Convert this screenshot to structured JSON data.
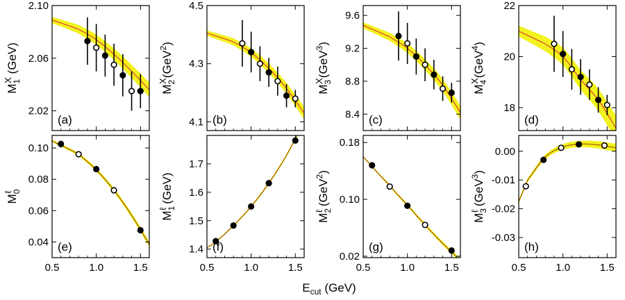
{
  "figure": {
    "xlabel": {
      "main": "E",
      "sub": "cut",
      "unit": " (GeV)"
    }
  },
  "chart_data": [
    {
      "type": "scatter",
      "panel": "(a)",
      "row": "top",
      "col": 0,
      "ylabel": {
        "base": "M",
        "sub": "1",
        "sup": "X",
        "unit": " (GeV)",
        "unit_sup": ""
      },
      "xlim": [
        0.5,
        1.6
      ],
      "ylim": [
        2.005,
        2.1
      ],
      "xticks": [
        "0.5",
        "1.0",
        "1.5"
      ],
      "yticks": [
        "2.02",
        "2.06",
        "2.10"
      ],
      "xticklabels_shown": false,
      "fit_curve": {
        "x": [
          0.5,
          0.8,
          1.0,
          1.2,
          1.4,
          1.6
        ],
        "y": [
          2.089,
          2.082,
          2.074,
          2.063,
          2.05,
          2.036
        ]
      },
      "band_halfwidth": 0.004,
      "points": [
        {
          "x": 0.9,
          "y": 2.073,
          "err": 0.018,
          "filled": true
        },
        {
          "x": 1.0,
          "y": 2.068,
          "err": 0.018,
          "filled": false
        },
        {
          "x": 1.1,
          "y": 2.062,
          "err": 0.016,
          "filled": true
        },
        {
          "x": 1.2,
          "y": 2.055,
          "err": 0.016,
          "filled": false
        },
        {
          "x": 1.3,
          "y": 2.047,
          "err": 0.016,
          "filled": true
        },
        {
          "x": 1.4,
          "y": 2.035,
          "err": 0.015,
          "filled": false
        },
        {
          "x": 1.5,
          "y": 2.035,
          "err": 0.013,
          "filled": true
        }
      ]
    },
    {
      "type": "scatter",
      "panel": "(b)",
      "row": "top",
      "col": 1,
      "ylabel": {
        "base": "M",
        "sub": "2",
        "sup": "X",
        "unit": "(GeV",
        "unit_sup": "2"
      },
      "xlim": [
        0.5,
        1.6
      ],
      "ylim": [
        4.07,
        4.5
      ],
      "xticks": [
        "0.5",
        "1.0",
        "1.5"
      ],
      "yticks": [
        "4.1",
        "4.3",
        "4.5"
      ],
      "xticklabels_shown": false,
      "fit_curve": {
        "x": [
          0.5,
          0.8,
          1.0,
          1.2,
          1.4,
          1.6
        ],
        "y": [
          4.405,
          4.375,
          4.338,
          4.284,
          4.215,
          4.13
        ]
      },
      "band_halfwidth": 0.015,
      "points": [
        {
          "x": 0.9,
          "y": 4.37,
          "err": 0.08,
          "filled": false
        },
        {
          "x": 1.0,
          "y": 4.34,
          "err": 0.07,
          "filled": true
        },
        {
          "x": 1.1,
          "y": 4.3,
          "err": 0.06,
          "filled": false
        },
        {
          "x": 1.2,
          "y": 4.27,
          "err": 0.05,
          "filled": true
        },
        {
          "x": 1.3,
          "y": 4.24,
          "err": 0.05,
          "filled": false
        },
        {
          "x": 1.4,
          "y": 4.19,
          "err": 0.04,
          "filled": true
        },
        {
          "x": 1.5,
          "y": 4.18,
          "err": 0.03,
          "filled": false
        }
      ]
    },
    {
      "type": "scatter",
      "panel": "(c)",
      "row": "top",
      "col": 2,
      "ylabel": {
        "base": "M",
        "sub": "3",
        "sup": "X",
        "unit": "(GeV",
        "unit_sup": "3"
      },
      "xlim": [
        0.5,
        1.6
      ],
      "ylim": [
        8.2,
        9.72
      ],
      "xticks": [
        "0.5",
        "1.0",
        "1.5"
      ],
      "yticks": [
        "8.4",
        "8.8",
        "9.2",
        "9.6"
      ],
      "xticklabels_shown": false,
      "fit_curve": {
        "x": [
          0.5,
          0.8,
          1.0,
          1.2,
          1.4,
          1.6
        ],
        "y": [
          9.48,
          9.34,
          9.2,
          9.0,
          8.75,
          8.42
        ]
      },
      "band_halfwidth": 0.06,
      "points": [
        {
          "x": 0.9,
          "y": 9.35,
          "err": 0.3,
          "filled": true
        },
        {
          "x": 1.0,
          "y": 9.26,
          "err": 0.25,
          "filled": false
        },
        {
          "x": 1.1,
          "y": 9.1,
          "err": 0.22,
          "filled": true
        },
        {
          "x": 1.2,
          "y": 9.0,
          "err": 0.2,
          "filled": false
        },
        {
          "x": 1.3,
          "y": 8.88,
          "err": 0.18,
          "filled": true
        },
        {
          "x": 1.4,
          "y": 8.71,
          "err": 0.15,
          "filled": false
        },
        {
          "x": 1.5,
          "y": 8.66,
          "err": 0.12,
          "filled": true
        }
      ]
    },
    {
      "type": "scatter",
      "panel": "(d)",
      "row": "top",
      "col": 3,
      "ylabel": {
        "base": "M",
        "sub": "4",
        "sup": "X",
        "unit": "(GeV",
        "unit_sup": "4"
      },
      "xlim": [
        0.5,
        1.6
      ],
      "ylim": [
        17.1,
        22.0
      ],
      "xticks": [
        "0.5",
        "1.0",
        "1.5"
      ],
      "yticks": [
        "18",
        "20",
        "22"
      ],
      "xticklabels_shown": false,
      "fit_curve": {
        "x": [
          0.5,
          0.8,
          1.0,
          1.2,
          1.4,
          1.6
        ],
        "y": [
          21.0,
          20.5,
          20.0,
          19.1,
          18.3,
          17.2
        ]
      },
      "band_halfwidth": 0.35,
      "points": [
        {
          "x": 0.9,
          "y": 20.5,
          "err": 1.1,
          "filled": false
        },
        {
          "x": 1.0,
          "y": 20.1,
          "err": 0.9,
          "filled": true
        },
        {
          "x": 1.1,
          "y": 19.5,
          "err": 0.8,
          "filled": false
        },
        {
          "x": 1.2,
          "y": 19.2,
          "err": 0.7,
          "filled": true
        },
        {
          "x": 1.3,
          "y": 18.9,
          "err": 0.6,
          "filled": false
        },
        {
          "x": 1.4,
          "y": 18.3,
          "err": 0.5,
          "filled": true
        },
        {
          "x": 1.5,
          "y": 18.1,
          "err": 0.4,
          "filled": false
        }
      ]
    },
    {
      "type": "scatter",
      "panel": "(e)",
      "row": "bottom",
      "col": 0,
      "ylabel": {
        "base": "M",
        "sub": "0",
        "sup": "ℓ",
        "unit": "",
        "unit_sup": ""
      },
      "xlim": [
        0.5,
        1.6
      ],
      "ylim": [
        0.03,
        0.108
      ],
      "xticks": [
        "0.5",
        "1.0",
        "1.5"
      ],
      "yticks": [
        "0.04",
        "0.06",
        "0.08",
        "0.10"
      ],
      "xticklabels_shown": true,
      "fit_curve": {
        "x": [
          0.5,
          0.8,
          1.0,
          1.2,
          1.4,
          1.6
        ],
        "y": [
          0.1045,
          0.096,
          0.086,
          0.073,
          0.057,
          0.0385
        ]
      },
      "band_halfwidth": 0.0012,
      "points": [
        {
          "x": 0.6,
          "y": 0.1025,
          "err": 0.0022,
          "filled": true
        },
        {
          "x": 0.8,
          "y": 0.096,
          "err": 0.001,
          "filled": false
        },
        {
          "x": 1.0,
          "y": 0.0865,
          "err": 0.0008,
          "filled": true
        },
        {
          "x": 1.2,
          "y": 0.073,
          "err": 0.0008,
          "filled": false
        },
        {
          "x": 1.5,
          "y": 0.0475,
          "err": 0.0008,
          "filled": true
        }
      ]
    },
    {
      "type": "scatter",
      "panel": "(f)",
      "row": "bottom",
      "col": 1,
      "ylabel": {
        "base": "M",
        "sub": "1",
        "sup": "ℓ",
        "unit": " (GeV)",
        "unit_sup": ""
      },
      "xlim": [
        0.5,
        1.6
      ],
      "ylim": [
        1.37,
        1.8
      ],
      "xticks": [
        "0.5",
        "1.0",
        "1.5"
      ],
      "yticks": [
        "1.4",
        "1.5",
        "1.6",
        "1.7"
      ],
      "xticklabels_shown": true,
      "fit_curve": {
        "x": [
          0.5,
          0.6,
          0.8,
          1.0,
          1.2,
          1.4,
          1.6
        ],
        "y": [
          1.405,
          1.428,
          1.483,
          1.55,
          1.632,
          1.73,
          1.85
        ]
      },
      "band_halfwidth": 0.004,
      "points": [
        {
          "x": 0.6,
          "y": 1.428,
          "err": 0.003,
          "filled": true
        },
        {
          "x": 0.8,
          "y": 1.483,
          "err": 0.003,
          "filled": true
        },
        {
          "x": 1.0,
          "y": 1.55,
          "err": 0.003,
          "filled": true
        },
        {
          "x": 1.2,
          "y": 1.632,
          "err": 0.003,
          "filled": true
        },
        {
          "x": 1.5,
          "y": 1.782,
          "err": 0.003,
          "filled": true
        }
      ]
    },
    {
      "type": "scatter",
      "panel": "(g)",
      "row": "bottom",
      "col": 2,
      "ylabel": {
        "base": "M",
        "sub": "2",
        "sup": "ℓ",
        "unit": " (GeV",
        "unit_sup": "2"
      },
      "xlim": [
        0.5,
        1.6
      ],
      "ylim": [
        0.018,
        0.19
      ],
      "xticks": [
        "0.5",
        "1.0",
        "1.5"
      ],
      "yticks": [
        "0.02",
        "0.10",
        "0.18"
      ],
      "xticklabels_shown": true,
      "fit_curve": {
        "x": [
          0.5,
          0.8,
          1.0,
          1.2,
          1.4,
          1.6
        ],
        "y": [
          0.16,
          0.12,
          0.092,
          0.064,
          0.038,
          0.014
        ]
      },
      "band_halfwidth": 0.002,
      "points": [
        {
          "x": 0.6,
          "y": 0.148,
          "err": 0.003,
          "filled": true
        },
        {
          "x": 0.8,
          "y": 0.118,
          "err": 0.002,
          "filled": false
        },
        {
          "x": 1.0,
          "y": 0.091,
          "err": 0.002,
          "filled": true
        },
        {
          "x": 1.2,
          "y": 0.064,
          "err": 0.002,
          "filled": false
        },
        {
          "x": 1.5,
          "y": 0.028,
          "err": 0.002,
          "filled": true
        }
      ]
    },
    {
      "type": "scatter",
      "panel": "(h)",
      "row": "bottom",
      "col": 3,
      "ylabel": {
        "base": "M",
        "sub": "3",
        "sup": "ℓ",
        "unit": " (GeV",
        "unit_sup": "3"
      },
      "xlim": [
        0.5,
        1.6
      ],
      "ylim": [
        -0.037,
        0.0055
      ],
      "xticks": [
        "0.5",
        "1.0",
        "1.5"
      ],
      "yticks": [
        "-0.03",
        "-0.02",
        "-0.01",
        "0.00"
      ],
      "xticklabels_shown": true,
      "fit_curve": {
        "x": [
          0.5,
          0.6,
          0.8,
          1.0,
          1.2,
          1.4,
          1.6
        ],
        "y": [
          -0.0175,
          -0.01,
          -0.002,
          0.0015,
          0.0025,
          0.0022,
          0.0012
        ]
      },
      "band_halfwidth": 0.001,
      "points": [
        {
          "x": 0.58,
          "y": -0.0122,
          "err": 0.0005,
          "filled": false
        },
        {
          "x": 0.78,
          "y": -0.003,
          "err": 0.0005,
          "filled": true
        },
        {
          "x": 0.98,
          "y": 0.0012,
          "err": 0.0005,
          "filled": false
        },
        {
          "x": 1.18,
          "y": 0.0024,
          "err": 0.0005,
          "filled": true
        },
        {
          "x": 1.47,
          "y": 0.002,
          "err": 0.0005,
          "filled": false
        }
      ]
    }
  ]
}
